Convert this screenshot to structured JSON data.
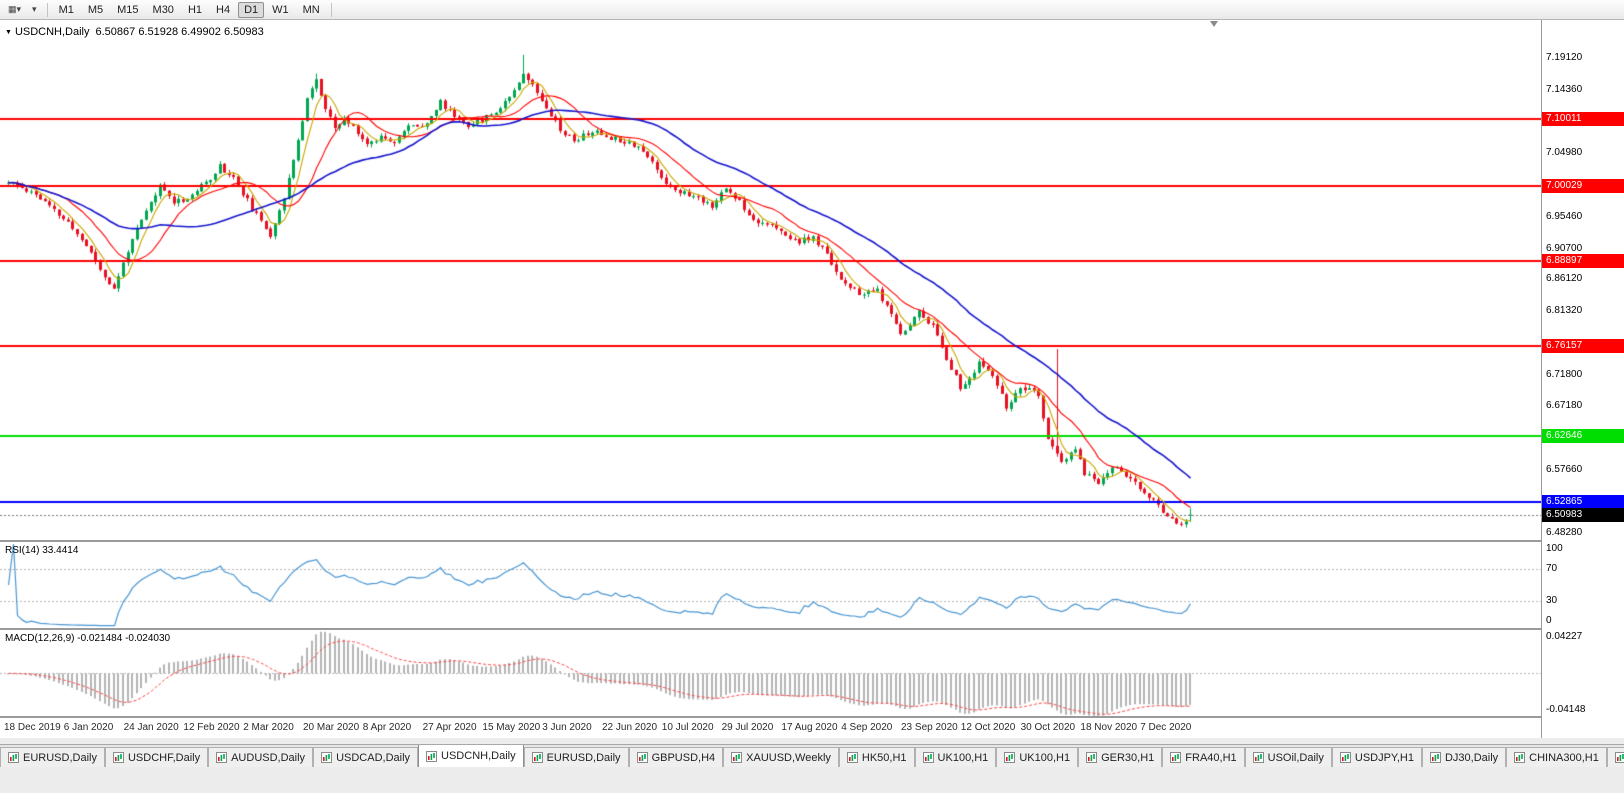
{
  "toolbar": {
    "left_buttons": [
      {
        "name": "chart-type-button",
        "glyph": "▦▾"
      },
      {
        "name": "timeframe-dropdown-button",
        "glyph": "▾"
      }
    ],
    "timeframes": [
      "M1",
      "M5",
      "M15",
      "M30",
      "H1",
      "H4",
      "D1",
      "W1",
      "MN"
    ],
    "active_timeframe": "D1"
  },
  "chart": {
    "symbol": "USDCNH,Daily",
    "ohlc_text": "6.50867 6.51928 6.49902 6.50983",
    "open": "6.50867",
    "high": "6.51928",
    "low": "6.49902",
    "close": "6.50983",
    "price_axis_labels": [
      "7.19120",
      "7.14360",
      "7.04980",
      "6.95460",
      "6.90700",
      "6.86120",
      "6.81320",
      "6.71800",
      "6.67180",
      "6.57660",
      "6.48280"
    ],
    "current_price_badge": {
      "label": "6.50983",
      "price": 6.50983,
      "bg": "#000000",
      "fg": "#ffffff"
    }
  },
  "rsi_pane": {
    "label": "RSI(14) 33.4414",
    "line_color": "#4a96d2",
    "axis_labels": [
      {
        "text": "100",
        "value": 100
      },
      {
        "text": "70",
        "value": 70
      },
      {
        "text": "30",
        "value": 30
      },
      {
        "text": "0",
        "value": 0
      }
    ],
    "dotted_levels": [
      70,
      30
    ]
  },
  "macd_pane": {
    "label": "MACD(12,26,9) -0.021484 -0.024030",
    "histogram_color": "#b4b4b4",
    "signal_color": "#ff4545",
    "axis_top": {
      "text": "0.04227",
      "value": 0.04227
    },
    "axis_bottom": {
      "text": "-0.04148",
      "value": -0.04148
    }
  },
  "tabs": {
    "items": [
      "EURUSD,Daily",
      "USDCHF,Daily",
      "AUDUSD,Daily",
      "USDCAD,Daily",
      "USDCNH,Daily",
      "EURUSD,Daily",
      "GBPUSD,H4",
      "XAUUSD,Weekly",
      "HK50,H1",
      "UK100,H1",
      "UK100,H1",
      "GER30,H1",
      "FRA40,H1",
      "USOil,Daily",
      "USDJPY,H1",
      "DJ30,Daily",
      "CHINA300,H1",
      "US"
    ],
    "active_index": 4
  },
  "chart_data": {
    "type": "candlestick",
    "title": "USDCNH Daily",
    "ylim": [
      6.472,
      7.248
    ],
    "bars": 258,
    "bars_per_x_tick": 13,
    "x_tick_labels": [
      "18 Dec 2019",
      "6 Jan 2020",
      "24 Jan 2020",
      "12 Feb 2020",
      "2 Mar 2020",
      "20 Mar 2020",
      "8 Apr 2020",
      "27 Apr 2020",
      "15 May 2020",
      "3 Jun 2020",
      "22 Jun 2020",
      "10 Jul 2020",
      "29 Jul 2020",
      "17 Aug 2020",
      "4 Sep 2020",
      "23 Sep 2020",
      "12 Oct 2020",
      "30 Oct 2020",
      "18 Nov 2020",
      "7 Dec 2020"
    ],
    "seed": 11,
    "noise_amp": 0.0055,
    "bull_color": "#00a650",
    "bear_color": "#e81123",
    "close_anchors": [
      [
        0,
        7.005
      ],
      [
        3,
        6.998
      ],
      [
        6,
        6.988
      ],
      [
        10,
        6.963
      ],
      [
        13,
        6.945
      ],
      [
        17,
        6.912
      ],
      [
        20,
        6.876
      ],
      [
        23,
        6.845
      ],
      [
        26,
        6.905
      ],
      [
        30,
        6.962
      ],
      [
        33,
        7.0
      ],
      [
        36,
        6.978
      ],
      [
        39,
        6.982
      ],
      [
        43,
        7.005
      ],
      [
        46,
        7.03
      ],
      [
        49,
        7.012
      ],
      [
        52,
        6.978
      ],
      [
        55,
        6.945
      ],
      [
        57,
        6.928
      ],
      [
        60,
        6.985
      ],
      [
        63,
        7.065
      ],
      [
        65,
        7.135
      ],
      [
        67,
        7.158
      ],
      [
        69,
        7.115
      ],
      [
        71,
        7.085
      ],
      [
        73,
        7.1
      ],
      [
        76,
        7.082
      ],
      [
        78,
        7.062
      ],
      [
        81,
        7.075
      ],
      [
        84,
        7.068
      ],
      [
        87,
        7.088
      ],
      [
        91,
        7.095
      ],
      [
        94,
        7.125
      ],
      [
        97,
        7.105
      ],
      [
        100,
        7.092
      ],
      [
        104,
        7.103
      ],
      [
        107,
        7.118
      ],
      [
        110,
        7.145
      ],
      [
        112,
        7.17
      ],
      [
        114,
        7.15
      ],
      [
        117,
        7.12
      ],
      [
        120,
        7.085
      ],
      [
        123,
        7.068
      ],
      [
        127,
        7.082
      ],
      [
        130,
        7.075
      ],
      [
        134,
        7.068
      ],
      [
        137,
        7.06
      ],
      [
        140,
        7.035
      ],
      [
        143,
        7.005
      ],
      [
        146,
        6.992
      ],
      [
        150,
        6.982
      ],
      [
        153,
        6.972
      ],
      [
        156,
        6.996
      ],
      [
        159,
        6.978
      ],
      [
        162,
        6.95
      ],
      [
        165,
        6.945
      ],
      [
        169,
        6.925
      ],
      [
        172,
        6.918
      ],
      [
        175,
        6.922
      ],
      [
        178,
        6.898
      ],
      [
        181,
        6.862
      ],
      [
        183,
        6.846
      ],
      [
        186,
        6.838
      ],
      [
        189,
        6.845
      ],
      [
        191,
        6.818
      ],
      [
        194,
        6.782
      ],
      [
        196,
        6.792
      ],
      [
        198,
        6.815
      ],
      [
        201,
        6.79
      ],
      [
        204,
        6.745
      ],
      [
        207,
        6.7
      ],
      [
        209,
        6.71
      ],
      [
        211,
        6.738
      ],
      [
        214,
        6.715
      ],
      [
        217,
        6.672
      ],
      [
        220,
        6.695
      ],
      [
        222,
        6.698
      ],
      [
        224,
        6.685
      ],
      [
        226,
        6.625
      ],
      [
        229,
        6.585
      ],
      [
        232,
        6.608
      ],
      [
        234,
        6.572
      ],
      [
        237,
        6.558
      ],
      [
        240,
        6.582
      ],
      [
        243,
        6.57
      ],
      [
        246,
        6.548
      ],
      [
        248,
        6.535
      ],
      [
        250,
        6.522
      ],
      [
        253,
        6.505
      ],
      [
        255,
        6.492
      ],
      [
        257,
        6.51
      ]
    ],
    "wick_spikes": [
      [
        67,
        7.168
      ],
      [
        112,
        7.196
      ],
      [
        228,
        6.757
      ]
    ],
    "last_candle": {
      "open": 6.50867,
      "high": 6.51928,
      "low": 6.49902,
      "close": 6.50983
    },
    "moving_averages": [
      {
        "period": 5,
        "color": "#c8a800"
      },
      {
        "period": 13,
        "color": "#ff0000"
      },
      {
        "period": 34,
        "color": "#1515cc"
      }
    ],
    "horizontal_lines": [
      {
        "price": 7.10011,
        "label": "7.10011",
        "color": "#ff0000"
      },
      {
        "price": 7.00029,
        "label": "7.00029",
        "color": "#ff0000"
      },
      {
        "price": 6.88897,
        "label": "6.88897",
        "color": "#ff0000"
      },
      {
        "price": 6.76157,
        "label": "6.76157",
        "color": "#ff0000"
      },
      {
        "price": 6.62646,
        "label": "6.62646",
        "color": "#00dd00"
      },
      {
        "price": 6.52865,
        "label": "6.52865",
        "color": "#0000ff"
      }
    ],
    "indicators": [
      {
        "type": "RSI",
        "period": 14,
        "current": 33.4414,
        "range": [
          0,
          100
        ],
        "levels": [
          70,
          30
        ]
      },
      {
        "type": "MACD",
        "fast": 12,
        "slow": 26,
        "signal": 9,
        "macd": -0.021484,
        "signal_value": -0.02403,
        "range": [
          -0.04148,
          0.04227
        ]
      }
    ]
  }
}
